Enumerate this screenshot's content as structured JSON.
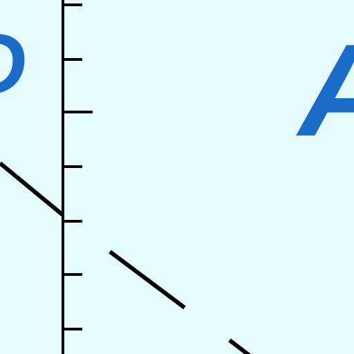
{
  "figure": {
    "background_color": "#e6fbfd",
    "line_color": "#000000",
    "accent_color": "#1b6cc8"
  },
  "labels": [
    {
      "id": "left-letter",
      "text": "D"
    },
    {
      "id": "right-letter",
      "text": "A"
    }
  ]
}
